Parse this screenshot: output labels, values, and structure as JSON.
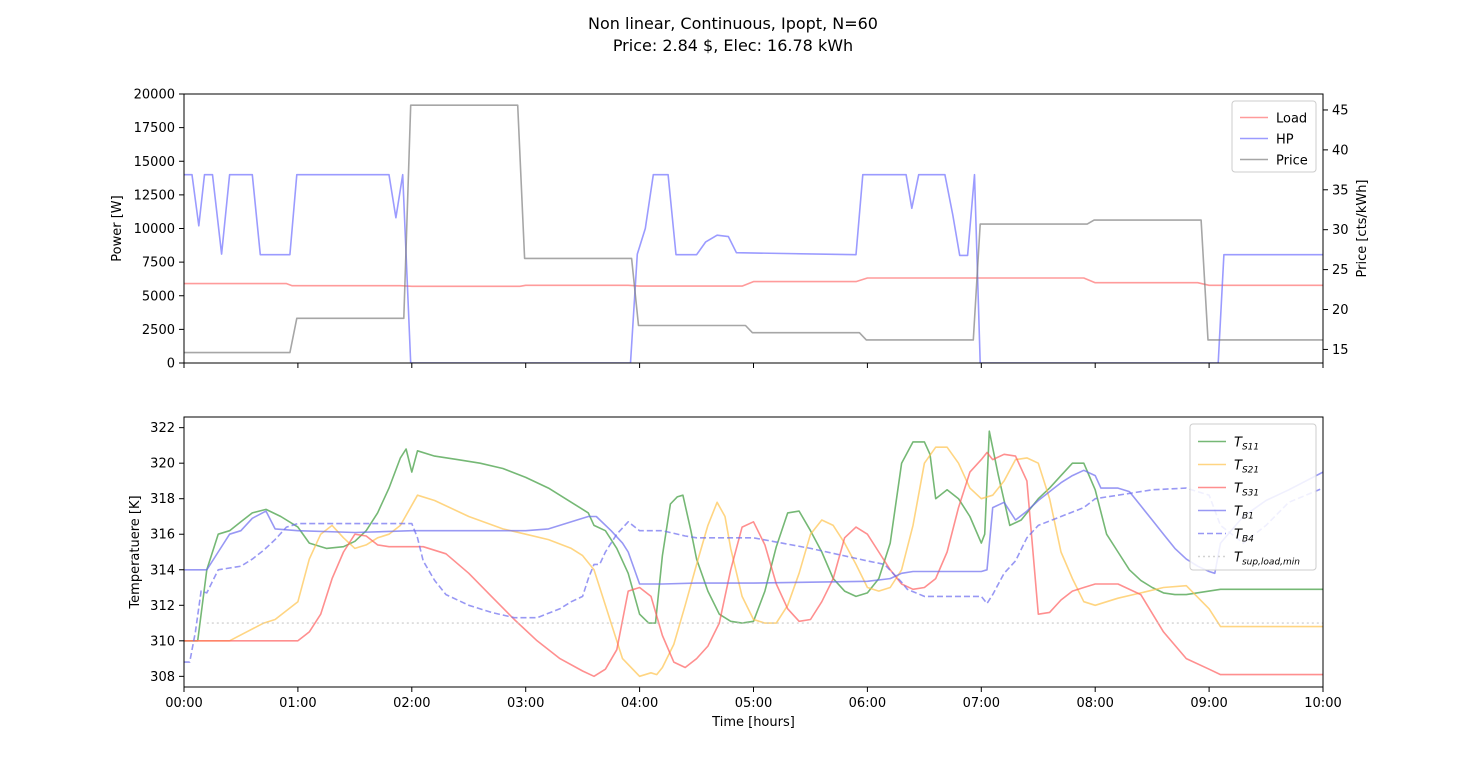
{
  "figure": {
    "title_line1": "Non linear, Continuous, Ipopt, N=60",
    "title_line2": "Price: 2.84 $, Elec: 16.78 kWh"
  },
  "chart_data": [
    {
      "type": "line",
      "xlabel": "",
      "ylabel": "Power [W]",
      "ylabel_right": "Price [cts/kWh]",
      "xlim": [
        0,
        10
      ],
      "ylim": [
        0,
        20000
      ],
      "ylim_right": [
        13.3,
        47
      ],
      "x_ticks": [
        0,
        1,
        2,
        3,
        4,
        5,
        6,
        7,
        8,
        9,
        10
      ],
      "y_ticks": [
        0,
        2500,
        5000,
        7500,
        10000,
        12500,
        15000,
        17500,
        20000
      ],
      "y_ticks_right": [
        15,
        20,
        25,
        30,
        35,
        40,
        45
      ],
      "legend_position": "top-right",
      "series": [
        {
          "name": "Load",
          "axis": "left",
          "color": "#ff7070",
          "x": [
            0,
            0.9,
            0.95,
            1.9,
            2,
            2.95,
            3,
            3.9,
            4,
            4.9,
            5,
            5.9,
            6,
            6.9,
            7,
            7.9,
            8,
            8.9,
            9,
            10
          ],
          "y": [
            5900,
            5900,
            5750,
            5750,
            5700,
            5700,
            5780,
            5780,
            5720,
            5720,
            6050,
            6050,
            6320,
            6320,
            6320,
            6320,
            5970,
            5970,
            5780,
            5780
          ]
        },
        {
          "name": "HP",
          "axis": "left",
          "color": "#7070ff",
          "x": [
            0,
            0.07,
            0.13,
            0.18,
            0.25,
            0.33,
            0.4,
            0.6,
            0.67,
            0.93,
            0.99,
            1.8,
            1.86,
            1.92,
            1.99,
            3.92,
            3.98,
            4.05,
            4.12,
            4.25,
            4.32,
            4.38,
            4.5,
            4.58,
            4.68,
            4.78,
            4.85,
            5.9,
            5.96,
            6.34,
            6.39,
            6.45,
            6.68,
            6.75,
            6.81,
            6.88,
            6.94,
            6.99,
            9.08,
            9.13,
            10
          ],
          "y": [
            14000,
            14000,
            10200,
            14000,
            14000,
            8100,
            14000,
            14000,
            8050,
            8050,
            14000,
            14000,
            10800,
            14000,
            0,
            0,
            8100,
            10000,
            14000,
            14000,
            8050,
            8050,
            8050,
            9000,
            9500,
            9400,
            8200,
            8050,
            14000,
            14000,
            11500,
            14000,
            14000,
            11000,
            8000,
            8000,
            14000,
            0,
            0,
            8050,
            8050
          ]
        },
        {
          "name": "Price",
          "axis": "right",
          "color": "#808080",
          "x": [
            0,
            0.93,
            0.99,
            1.93,
            1.99,
            2.93,
            2.99,
            3.93,
            3.99,
            4.93,
            4.99,
            5.93,
            5.99,
            6.93,
            6.99,
            7.93,
            7.99,
            8.93,
            8.99,
            10
          ],
          "y": [
            14.6,
            14.6,
            18.9,
            18.9,
            45.6,
            45.6,
            26.4,
            26.4,
            18.0,
            18.0,
            17.1,
            17.1,
            16.2,
            16.2,
            30.7,
            30.7,
            31.2,
            31.2,
            16.2,
            16.2
          ]
        }
      ]
    },
    {
      "type": "line",
      "xlabel": "Time [hours]",
      "ylabel": "Temperatuere [K]",
      "xlim": [
        0,
        10
      ],
      "ylim": [
        307.4,
        322.6
      ],
      "x_ticks": [
        0,
        1,
        2,
        3,
        4,
        5,
        6,
        7,
        8,
        9,
        10
      ],
      "x_tick_labels": [
        "00:00",
        "01:00",
        "02:00",
        "03:00",
        "04:00",
        "05:00",
        "06:00",
        "07:00",
        "08:00",
        "09:00",
        "10:00"
      ],
      "y_ticks": [
        308,
        310,
        312,
        314,
        316,
        318,
        320,
        322
      ],
      "legend_position": "top-right",
      "series": [
        {
          "name": "T",
          "subscript": "S11",
          "color": "#3a9a3a",
          "dash": "solid",
          "x": [
            0,
            0.12,
            0.2,
            0.3,
            0.4,
            0.5,
            0.6,
            0.72,
            0.85,
            1.0,
            1.1,
            1.25,
            1.4,
            1.5,
            1.6,
            1.7,
            1.8,
            1.9,
            1.95,
            2.0,
            2.05,
            2.2,
            2.4,
            2.6,
            2.8,
            3.0,
            3.2,
            3.4,
            3.55,
            3.6,
            3.7,
            3.8,
            3.9,
            4.0,
            4.08,
            4.14,
            4.2,
            4.27,
            4.33,
            4.38,
            4.45,
            4.5,
            4.6,
            4.7,
            4.8,
            4.9,
            5.0,
            5.1,
            5.2,
            5.3,
            5.4,
            5.5,
            5.6,
            5.7,
            5.8,
            5.9,
            6.0,
            6.1,
            6.2,
            6.3,
            6.4,
            6.5,
            6.55,
            6.6,
            6.7,
            6.8,
            6.9,
            7.0,
            7.03,
            7.07,
            7.15,
            7.25,
            7.35,
            7.5,
            7.6,
            7.7,
            7.8,
            7.9,
            8.0,
            8.1,
            8.2,
            8.3,
            8.4,
            8.5,
            8.6,
            8.7,
            8.8,
            9.0,
            9.1,
            10
          ],
          "y": [
            310,
            310,
            314,
            316,
            316.2,
            316.7,
            317.2,
            317.4,
            317,
            316.4,
            315.5,
            315.2,
            315.3,
            315.6,
            316.2,
            317.2,
            318.6,
            320.3,
            320.8,
            319.5,
            320.7,
            320.4,
            320.2,
            320.0,
            319.7,
            319.2,
            318.6,
            317.8,
            317.2,
            316.5,
            316.2,
            315.2,
            313.8,
            311.5,
            311.0,
            311.0,
            314.8,
            317.7,
            318.1,
            318.2,
            316.2,
            314.6,
            312.8,
            311.5,
            311.1,
            311.0,
            311.1,
            312.8,
            315.3,
            317.2,
            317.3,
            316.2,
            315.0,
            313.5,
            312.8,
            312.5,
            312.7,
            313.5,
            315.5,
            320.0,
            321.2,
            321.2,
            320.5,
            318.0,
            318.5,
            318.0,
            317.0,
            315.5,
            316.0,
            321.8,
            319.3,
            316.5,
            316.8,
            318.0,
            318.6,
            319.3,
            320.0,
            320.0,
            318.5,
            316.0,
            315.0,
            314.0,
            313.4,
            313.0,
            312.7,
            312.6,
            312.6,
            312.8,
            312.9,
            312.9
          ]
        },
        {
          "name": "T",
          "subscript": "S21",
          "color": "#ffc34d",
          "dash": "solid",
          "x": [
            0,
            0.4,
            0.55,
            0.7,
            0.8,
            1.0,
            1.1,
            1.2,
            1.3,
            1.4,
            1.5,
            1.6,
            1.7,
            1.8,
            1.9,
            2.05,
            2.2,
            2.5,
            2.8,
            3.0,
            3.2,
            3.4,
            3.5,
            3.6,
            3.7,
            3.75,
            3.85,
            4.0,
            4.1,
            4.15,
            4.2,
            4.3,
            4.4,
            4.5,
            4.6,
            4.68,
            4.75,
            4.8,
            4.9,
            5.0,
            5.1,
            5.2,
            5.3,
            5.4,
            5.5,
            5.6,
            5.7,
            5.8,
            5.9,
            6.0,
            6.1,
            6.2,
            6.3,
            6.4,
            6.5,
            6.6,
            6.7,
            6.8,
            6.9,
            7.0,
            7.1,
            7.2,
            7.3,
            7.4,
            7.5,
            7.6,
            7.7,
            7.8,
            7.9,
            8.0,
            8.2,
            8.4,
            8.6,
            8.8,
            9.0,
            9.1,
            10
          ],
          "y": [
            310,
            310,
            310.5,
            311,
            311.2,
            312.2,
            314.6,
            316.0,
            316.5,
            315.8,
            315.2,
            315.4,
            315.8,
            316.0,
            316.5,
            318.2,
            317.9,
            317.0,
            316.3,
            316.0,
            315.7,
            315.2,
            314.8,
            314.0,
            312.0,
            311.0,
            309.0,
            308.0,
            308.2,
            308.1,
            308.5,
            309.8,
            312.0,
            314.3,
            316.5,
            317.8,
            317.0,
            315.2,
            312.5,
            311.2,
            311.0,
            311.0,
            312.0,
            313.8,
            316.0,
            316.8,
            316.5,
            315.5,
            314.3,
            313.0,
            312.8,
            313.0,
            314.0,
            316.5,
            320.0,
            320.9,
            320.9,
            320.0,
            318.6,
            318.0,
            318.2,
            319.0,
            320.2,
            320.3,
            320.0,
            318.0,
            315.0,
            313.5,
            312.2,
            312.0,
            312.4,
            312.7,
            313.0,
            313.1,
            311.8,
            310.8,
            310.8
          ]
        },
        {
          "name": "T",
          "subscript": "S31",
          "color": "#ff6060",
          "dash": "solid",
          "x": [
            0,
            1.0,
            1.1,
            1.2,
            1.3,
            1.4,
            1.5,
            1.6,
            1.7,
            1.8,
            1.9,
            2.0,
            2.1,
            2.3,
            2.5,
            2.7,
            2.9,
            3.1,
            3.3,
            3.5,
            3.6,
            3.7,
            3.8,
            3.9,
            4.0,
            4.1,
            4.2,
            4.3,
            4.4,
            4.5,
            4.6,
            4.7,
            4.8,
            4.9,
            5.0,
            5.1,
            5.2,
            5.3,
            5.4,
            5.5,
            5.6,
            5.7,
            5.8,
            5.9,
            6.0,
            6.1,
            6.2,
            6.3,
            6.4,
            6.5,
            6.6,
            6.7,
            6.8,
            6.9,
            7.0,
            7.05,
            7.1,
            7.2,
            7.3,
            7.4,
            7.5,
            7.6,
            7.7,
            7.8,
            7.9,
            8.0,
            8.2,
            8.4,
            8.6,
            8.8,
            9.0,
            9.1,
            10
          ],
          "y": [
            310,
            310,
            310.5,
            311.5,
            313.5,
            315.0,
            316.0,
            315.9,
            315.4,
            315.3,
            315.3,
            315.3,
            315.3,
            314.9,
            313.8,
            312.5,
            311.2,
            310.0,
            309.0,
            308.3,
            308.0,
            308.4,
            309.5,
            312.8,
            313.0,
            312.5,
            310.3,
            308.8,
            308.5,
            309.0,
            309.7,
            311.0,
            314.0,
            316.4,
            316.7,
            315.4,
            313.2,
            311.8,
            311.1,
            311.2,
            312.2,
            313.5,
            315.8,
            316.4,
            316.0,
            315.0,
            314.0,
            313.2,
            312.9,
            313.0,
            313.5,
            315.0,
            317.5,
            319.5,
            320.2,
            320.6,
            320.2,
            320.5,
            320.4,
            319.0,
            311.5,
            311.6,
            312.3,
            312.8,
            313.0,
            313.2,
            313.2,
            312.6,
            310.5,
            309.0,
            308.4,
            308.1,
            308.1
          ]
        },
        {
          "name": "T",
          "subscript": "B1",
          "color": "#6c6cf0",
          "dash": "solid",
          "x": [
            0,
            0.2,
            0.3,
            0.4,
            0.5,
            0.6,
            0.72,
            0.8,
            1.0,
            1.5,
            2.0,
            2.5,
            3.0,
            3.2,
            3.45,
            3.55,
            3.62,
            3.75,
            3.85,
            3.9,
            4.0,
            4.2,
            4.5,
            5.0,
            5.5,
            6.0,
            6.2,
            6.3,
            6.4,
            6.8,
            6.95,
            7.0,
            7.05,
            7.1,
            7.2,
            7.3,
            7.4,
            7.5,
            7.6,
            7.7,
            7.8,
            7.9,
            8.0,
            8.05,
            8.2,
            8.3,
            8.4,
            8.5,
            8.6,
            8.7,
            8.8,
            8.9,
            9.0,
            9.05,
            9.1,
            9.3,
            9.5,
            9.7,
            10
          ],
          "y": [
            314,
            314,
            315,
            316,
            316.2,
            316.9,
            317.3,
            316.3,
            316.2,
            316.1,
            316.2,
            316.2,
            316.2,
            316.3,
            316.8,
            317.0,
            317.0,
            316.2,
            315.5,
            315.0,
            313.2,
            313.2,
            313.25,
            313.25,
            313.3,
            313.35,
            313.5,
            313.8,
            313.9,
            313.9,
            313.9,
            313.9,
            314.0,
            317.5,
            317.8,
            316.8,
            317.3,
            317.9,
            318.4,
            318.9,
            319.3,
            319.6,
            319.3,
            318.6,
            318.6,
            318.4,
            317.6,
            316.8,
            316.0,
            315.2,
            314.6,
            314.2,
            313.9,
            313.8,
            315.5,
            317.0,
            317.9,
            318.5,
            319.5
          ]
        },
        {
          "name": "T",
          "subscript": "B4",
          "color": "#6c6cf0",
          "dash": "dashed",
          "x": [
            0,
            0.05,
            0.1,
            0.15,
            0.2,
            0.3,
            0.4,
            0.5,
            0.6,
            0.7,
            0.8,
            0.9,
            1.0,
            1.5,
            2.0,
            2.05,
            2.1,
            2.2,
            2.3,
            2.5,
            2.7,
            2.9,
            3.1,
            3.3,
            3.4,
            3.5,
            3.55,
            3.6,
            3.65,
            3.7,
            3.8,
            3.9,
            4.0,
            4.2,
            4.4,
            4.5,
            5.0,
            5.5,
            6.0,
            6.15,
            6.3,
            6.35,
            6.5,
            6.9,
            7.0,
            7.05,
            7.1,
            7.2,
            7.3,
            7.4,
            7.5,
            7.7,
            7.9,
            8.0,
            8.2,
            8.5,
            8.8,
            9.0,
            9.1,
            9.3,
            9.5,
            9.7,
            10
          ],
          "y": [
            308.8,
            308.8,
            310.5,
            312.8,
            312.7,
            314.0,
            314.1,
            314.2,
            314.6,
            315.1,
            315.7,
            316.4,
            316.6,
            316.6,
            316.6,
            315.8,
            314.5,
            313.4,
            312.6,
            312.0,
            311.6,
            311.3,
            311.3,
            311.8,
            312.2,
            312.5,
            313.5,
            314.3,
            314.3,
            315.0,
            316.0,
            316.7,
            316.2,
            316.2,
            315.9,
            315.8,
            315.8,
            315.2,
            314.5,
            314.3,
            313.3,
            312.9,
            312.5,
            312.5,
            312.5,
            312.1,
            312.6,
            313.8,
            314.5,
            315.8,
            316.5,
            317.0,
            317.5,
            318.0,
            318.2,
            318.5,
            318.6,
            318.2,
            316.5,
            315.5,
            316.5,
            317.8,
            318.6
          ]
        },
        {
          "name": "T",
          "subscript": "sup, load, min",
          "color": "#bfbfbf",
          "dash": "dotted",
          "x": [
            0.2,
            10
          ],
          "y": [
            311,
            311
          ]
        }
      ]
    }
  ]
}
